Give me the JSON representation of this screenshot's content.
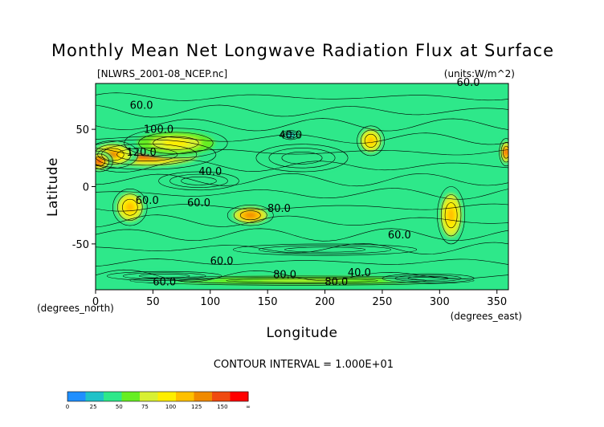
{
  "chart_data": {
    "type": "heatmap",
    "title": "Monthly Mean Net Longwave Radiation Flux at Surface",
    "file_label": "[NLWRS_2001-08_NCEP.nc]",
    "units_label": "(units:W/m^2)",
    "xlabel": "Longitude",
    "ylabel": "Latitude",
    "x_unit_label": "(degrees_east)",
    "y_unit_label": "(degrees_north)",
    "xlim": [
      0,
      360
    ],
    "ylim": [
      -90,
      90
    ],
    "x_ticks": [
      {
        "value": 0,
        "label": "0"
      },
      {
        "value": 50,
        "label": "50"
      },
      {
        "value": 100,
        "label": "100"
      },
      {
        "value": 150,
        "label": "150"
      },
      {
        "value": 200,
        "label": "200"
      },
      {
        "value": 250,
        "label": "250"
      },
      {
        "value": 300,
        "label": "300"
      },
      {
        "value": 350,
        "label": "350"
      }
    ],
    "y_ticks": [
      {
        "value": 50,
        "label": "50"
      },
      {
        "value": 0,
        "label": "0"
      },
      {
        "value": -50,
        "label": "-50"
      }
    ],
    "contour_interval": "CONTOUR INTERVAL = 1.000E+01",
    "background_value": 50,
    "colorbar": {
      "labels": [
        "0",
        "25",
        "50",
        "75",
        "100",
        "125",
        "150",
        "∞"
      ],
      "colors": [
        "#1f8fff",
        "#1fc2c8",
        "#2ee88a",
        "#66ee22",
        "#d8f032",
        "#ffee00",
        "#ffc000",
        "#f08a00",
        "#f04a10",
        "#ff0000"
      ]
    },
    "contour_labels": [
      {
        "lon": 40,
        "lat": 68,
        "text": "60.0"
      },
      {
        "lon": 55,
        "lat": 47,
        "text": "100.0"
      },
      {
        "lon": 40,
        "lat": 27,
        "text": "120.0"
      },
      {
        "lon": 170,
        "lat": 42,
        "text": "40.0"
      },
      {
        "lon": 100,
        "lat": 10,
        "text": "40.0"
      },
      {
        "lon": 45,
        "lat": -15,
        "text": "60.0"
      },
      {
        "lon": 90,
        "lat": -17,
        "text": "60.0"
      },
      {
        "lon": 160,
        "lat": -22,
        "text": "80.0"
      },
      {
        "lon": 265,
        "lat": -45,
        "text": "60.0"
      },
      {
        "lon": 110,
        "lat": -68,
        "text": "60.0"
      },
      {
        "lon": 165,
        "lat": -80,
        "text": "80.0"
      },
      {
        "lon": 210,
        "lat": -93,
        "text": "80.0"
      },
      {
        "lon": 230,
        "lat": -78,
        "text": "40.0"
      },
      {
        "lon": 60,
        "lat": -88,
        "text": "60.0"
      },
      {
        "lon": 325,
        "lat": 88,
        "text": "60.0"
      }
    ],
    "features": [
      {
        "lon": 45,
        "lat": 28,
        "value": 150,
        "rx": 60,
        "ry": 13
      },
      {
        "lon": 70,
        "lat": 38,
        "value": 100,
        "rx": 45,
        "ry": 13
      },
      {
        "lon": 15,
        "lat": 28,
        "value": 125,
        "rx": 22,
        "ry": 12
      },
      {
        "lon": 3,
        "lat": 22,
        "value": 150,
        "rx": 12,
        "ry": 9
      },
      {
        "lon": 30,
        "lat": -18,
        "value": 110,
        "rx": 15,
        "ry": 16
      },
      {
        "lon": 135,
        "lat": -25,
        "value": 135,
        "rx": 20,
        "ry": 9
      },
      {
        "lon": 240,
        "lat": 40,
        "value": 120,
        "rx": 12,
        "ry": 13
      },
      {
        "lon": 310,
        "lat": -25,
        "value": 110,
        "rx": 12,
        "ry": 25
      },
      {
        "lon": 358,
        "lat": 30,
        "value": 140,
        "rx": 6,
        "ry": 12
      },
      {
        "lon": 170,
        "lat": 45,
        "value": 20,
        "rx": 8,
        "ry": 4
      },
      {
        "lon": 90,
        "lat": 5,
        "value": 40,
        "rx": 35,
        "ry": 8
      },
      {
        "lon": 180,
        "lat": 25,
        "value": 40,
        "rx": 40,
        "ry": 12
      },
      {
        "lon": 200,
        "lat": -55,
        "value": 40,
        "rx": 80,
        "ry": 5
      },
      {
        "lon": 180,
        "lat": -82,
        "value": 75,
        "rx": 150,
        "ry": 4
      },
      {
        "lon": 60,
        "lat": -78,
        "value": 40,
        "rx": 50,
        "ry": 4
      },
      {
        "lon": 290,
        "lat": -80,
        "value": 40,
        "rx": 40,
        "ry": 4
      }
    ]
  }
}
